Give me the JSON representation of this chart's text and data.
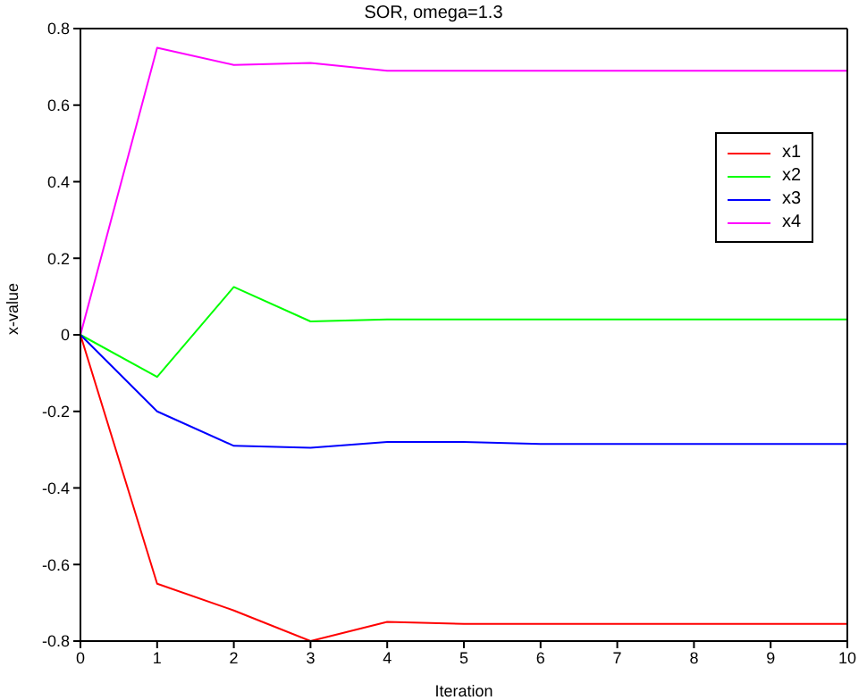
{
  "chart_data": {
    "type": "line",
    "title": "SOR, omega=1.3",
    "xlabel": "Iteration",
    "ylabel": "x-value",
    "x": [
      0,
      1,
      2,
      3,
      4,
      5,
      6,
      7,
      8,
      9,
      10
    ],
    "series": [
      {
        "name": "x1",
        "color": "#ff0000",
        "values": [
          0,
          -0.65,
          -0.72,
          -0.8,
          -0.75,
          -0.755,
          -0.755,
          -0.755,
          -0.755,
          -0.755,
          -0.755
        ]
      },
      {
        "name": "x2",
        "color": "#00ff00",
        "values": [
          0,
          -0.11,
          0.125,
          0.035,
          0.04,
          0.04,
          0.04,
          0.04,
          0.04,
          0.04,
          0.04
        ]
      },
      {
        "name": "x3",
        "color": "#0000ff",
        "values": [
          0,
          -0.2,
          -0.29,
          -0.295,
          -0.28,
          -0.28,
          -0.285,
          -0.285,
          -0.285,
          -0.285,
          -0.285
        ]
      },
      {
        "name": "x4",
        "color": "#ff00ff",
        "values": [
          0,
          0.75,
          0.705,
          0.71,
          0.69,
          0.69,
          0.69,
          0.69,
          0.69,
          0.69,
          0.69
        ]
      }
    ],
    "xlim": [
      0,
      10
    ],
    "xticks": [
      0,
      1,
      2,
      3,
      4,
      5,
      6,
      7,
      8,
      9,
      10
    ],
    "ylim": [
      -0.8,
      0.8
    ],
    "yticks": [
      -0.8,
      -0.6,
      -0.4,
      -0.2,
      0,
      0.2,
      0.4,
      0.6,
      0.8
    ],
    "grid": false,
    "legend": "top right",
    "marker": "none",
    "line_style": "solid"
  }
}
